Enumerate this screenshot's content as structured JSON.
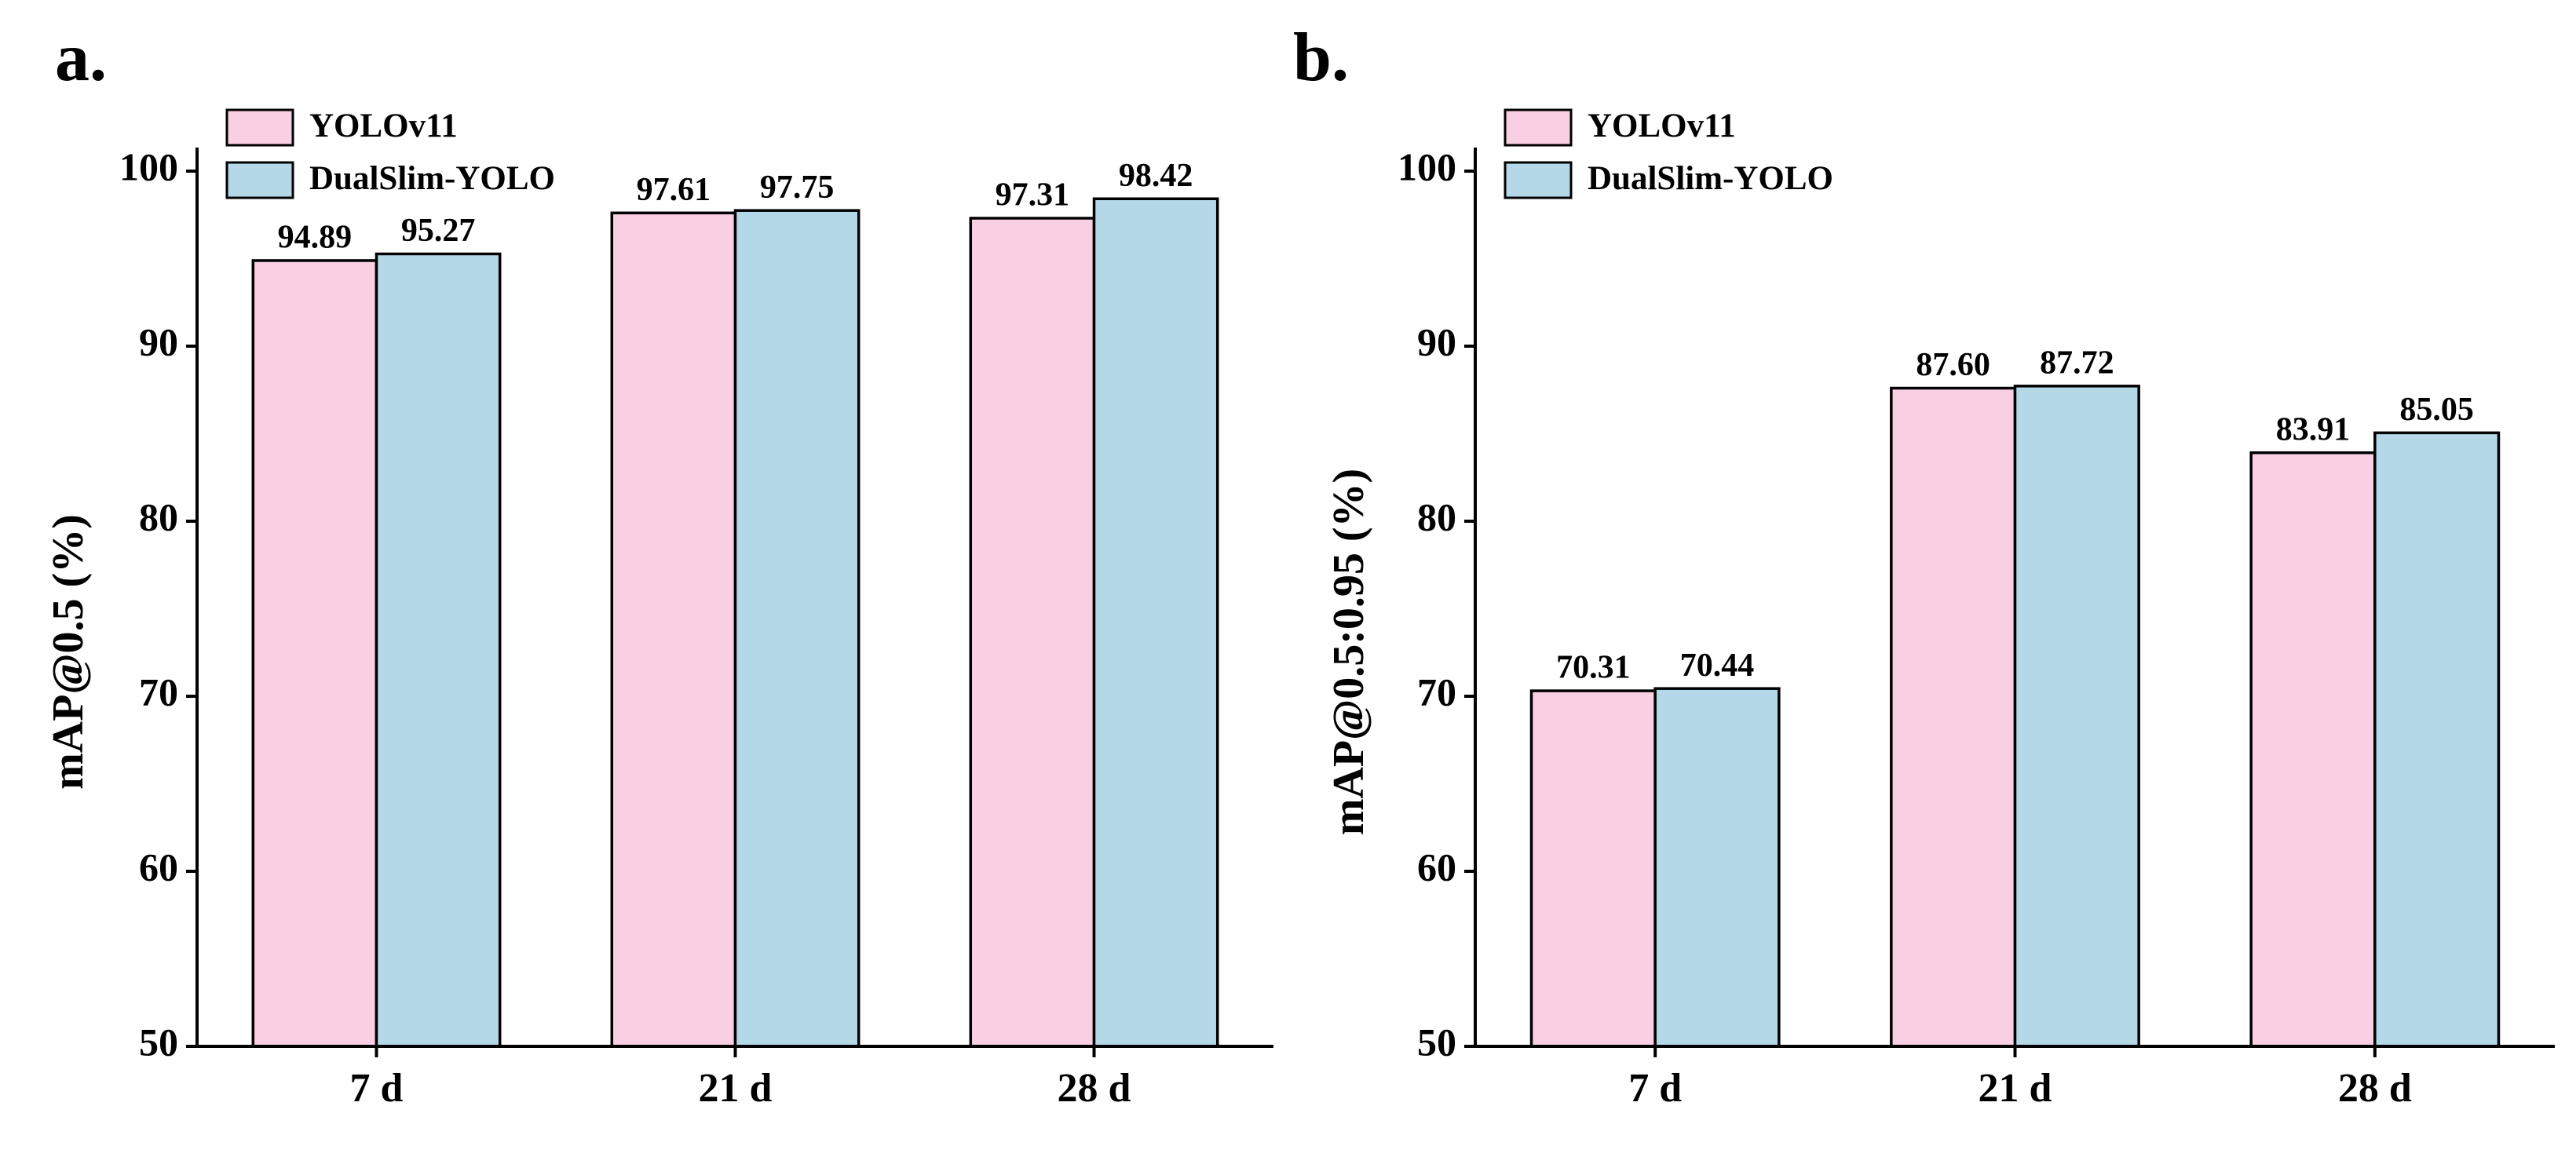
{
  "chart_data": [
    {
      "type": "bar",
      "title": "a.",
      "y_label": "mAP@0.5 (%)",
      "categories": [
        "7 d",
        "21 d",
        "28 d"
      ],
      "series": [
        {
          "name": "YOLOv11",
          "color": "#f8cfe3",
          "values": [
            94.89,
            97.61,
            97.31
          ],
          "value_labels": [
            "94.89",
            "97.61",
            "97.31"
          ]
        },
        {
          "name": "DualSlim-YOLO",
          "color": "#b5d8e8",
          "values": [
            95.27,
            97.75,
            98.42
          ],
          "value_labels": [
            "95.27",
            "97.75",
            "98.42"
          ]
        }
      ],
      "ylim": [
        50,
        100
      ],
      "yticks": [
        50,
        60,
        70,
        80,
        90,
        100
      ],
      "legend": "upper left"
    },
    {
      "type": "bar",
      "title": "b.",
      "y_label": "mAP@0.5:0.95 (%)",
      "categories": [
        "7 d",
        "21 d",
        "28 d"
      ],
      "series": [
        {
          "name": "YOLOv11",
          "color": "#f8cfe3",
          "values": [
            70.31,
            87.6,
            83.91
          ],
          "value_labels": [
            "70.31",
            "87.60",
            "83.91"
          ]
        },
        {
          "name": "DualSlim-YOLO",
          "color": "#b5d8e8",
          "values": [
            70.44,
            87.72,
            85.05
          ],
          "value_labels": [
            "70.44",
            "87.72",
            "85.05"
          ]
        }
      ],
      "ylim": [
        50,
        100
      ],
      "yticks": [
        50,
        60,
        70,
        80,
        90,
        100
      ],
      "legend": "upper left"
    }
  ]
}
